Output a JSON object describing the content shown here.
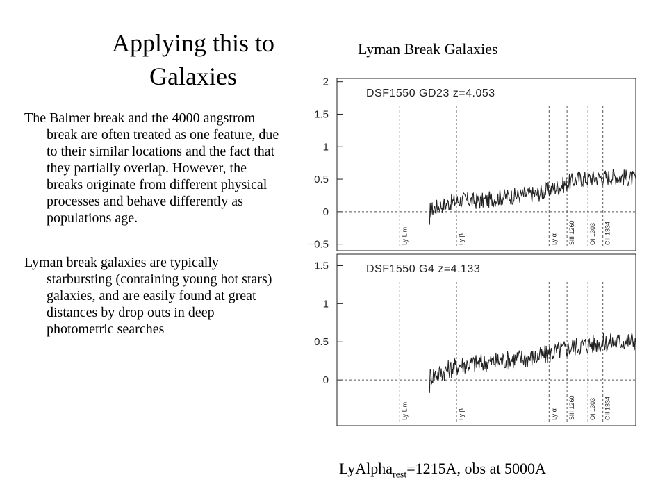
{
  "slide": {
    "title_line1": "Applying this to",
    "title_line2": "Galaxies",
    "figure_caption": "Lyman Break Galaxies",
    "para1": "The Balmer break and the 4000 angstrom break are often treated as one feature, due to their similar locations and the fact that they partially overlap. However, the breaks originate from different physical processes and behave differently as populations age.",
    "para2": "Lyman break galaxies are typically starbursting (containing young hot stars) galaxies, and are easily found at great distances by drop outs in deep photometric searches",
    "caption_main": "LyAlpha",
    "caption_sub": "rest",
    "caption_tail": "=1215A, obs at 5000A"
  },
  "chart_data": [
    {
      "type": "line",
      "panel_label": "DSF1550  GD23  z=4.053",
      "ylim": [
        -0.6,
        2.05
      ],
      "yticks": [
        2,
        1.5,
        1,
        0.5,
        0,
        -0.5
      ],
      "ytick_labels": [
        "2",
        "1.5",
        "1",
        "0.5",
        "0",
        "−0.5"
      ],
      "reference_line_y": 0,
      "spectral_lines": [
        "Ly Lim",
        "Ly β",
        "Ly α",
        "SiII 1260",
        "OI 1303",
        "CII 1334"
      ],
      "series": [
        {
          "x": [
            0.47,
            0.5,
            0.55,
            0.6,
            0.65,
            0.7,
            0.75,
            0.8,
            0.85,
            0.9,
            0.95,
            1.0
          ],
          "values": [
            0.02,
            0.1,
            0.18,
            0.16,
            0.22,
            0.25,
            0.28,
            0.38,
            0.5,
            0.52,
            0.55,
            0.5
          ]
        }
      ]
    },
    {
      "type": "line",
      "panel_label": "DSF1550  G4  z=4.133",
      "ylim": [
        -0.6,
        1.65
      ],
      "yticks": [
        1.5,
        1,
        0.5,
        0
      ],
      "ytick_labels": [
        "1.5",
        "1",
        "0.5",
        "0"
      ],
      "reference_line_y": 0,
      "spectral_lines": [
        "Ly Lim",
        "Ly β",
        "Ly α",
        "SiII 1260",
        "OI 1303",
        "CII 1334"
      ],
      "series": [
        {
          "x": [
            0.47,
            0.5,
            0.55,
            0.6,
            0.65,
            0.7,
            0.75,
            0.8,
            0.85,
            0.9,
            0.95,
            1.0
          ],
          "values": [
            0.05,
            0.1,
            0.2,
            0.22,
            0.25,
            0.28,
            0.3,
            0.38,
            0.45,
            0.48,
            0.5,
            0.52
          ]
        }
      ]
    }
  ]
}
